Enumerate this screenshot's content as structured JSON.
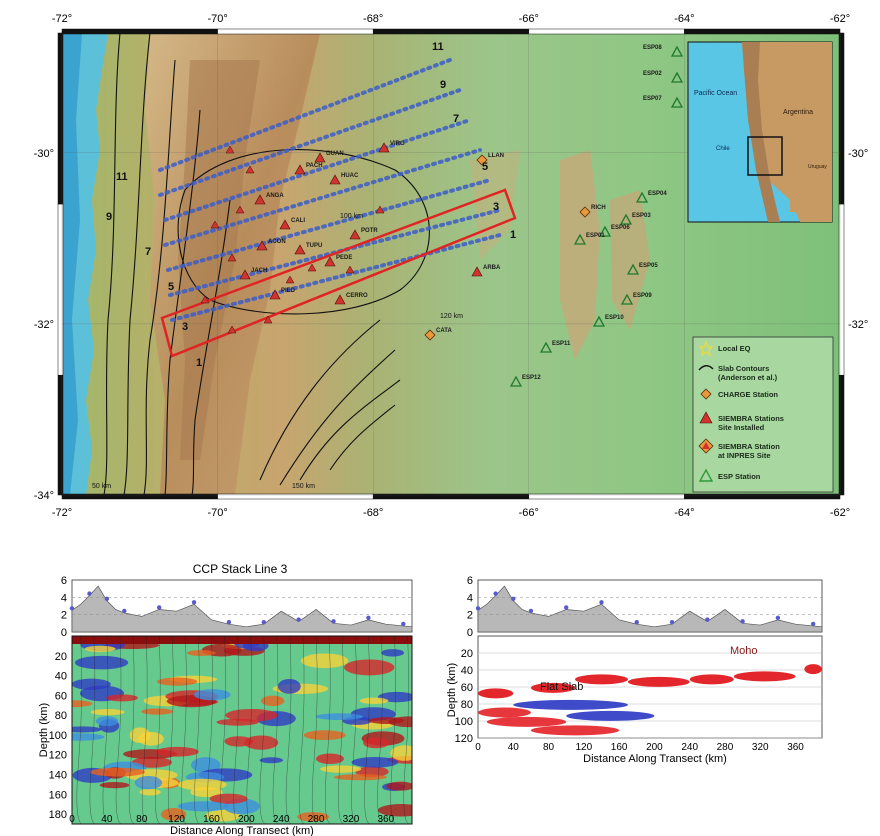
{
  "map": {
    "lon_labels": [
      "-72°",
      "-70°",
      "-68°",
      "-66°",
      "-64°",
      "-62°"
    ],
    "lat_labels_left": [
      "-30°",
      "-32°",
      "-34°"
    ],
    "lat_labels_right": [
      "-30°",
      "-32°"
    ],
    "lon_values": [
      -72,
      -70,
      -68,
      -66,
      -64,
      -62
    ],
    "lat_values": [
      -30,
      -32,
      -34
    ],
    "extent": {
      "lon": [
        -72,
        -62
      ],
      "lat": [
        -34,
        -28.6
      ]
    },
    "contour_labels": [
      "100 km",
      "120 km",
      "150 km",
      "50 km"
    ],
    "slab_numbers": [
      "11",
      "9",
      "7",
      "5",
      "3",
      "1",
      "11",
      "9",
      "7",
      "5",
      "3",
      "1"
    ],
    "station_labels": [
      "ESP08",
      "ESP02",
      "ESP07",
      "LLAN",
      "ESP04",
      "ESP03",
      "ESP06",
      "ESP05",
      "ESP09",
      "ESP10",
      "ESP11",
      "ESP12",
      "ESP01",
      "RICH",
      "ARBA",
      "CATA",
      "VIRG",
      "GUAN",
      "PACH",
      "HUAC",
      "ANGA",
      "CALI",
      "ACON",
      "TUPU",
      "PEDE",
      "POTR",
      "JACH",
      "PIED",
      "CERRO"
    ],
    "inset": {
      "labels": [
        "Pacific Ocean",
        "Argentina",
        "Chile",
        "Uruguay"
      ]
    },
    "legend": [
      {
        "symbol": "star",
        "label": "Local EQ",
        "color": "#e8d84a"
      },
      {
        "symbol": "line",
        "label": "Slab Contours (Anderson et al.)",
        "color": "#111111"
      },
      {
        "symbol": "diamond",
        "label": "CHARGE Station",
        "color": "#e89a3a"
      },
      {
        "symbol": "triangle",
        "label": "SIEMBRA Stations Site Installed",
        "color": "#d0342c"
      },
      {
        "symbol": "diamond-triangle",
        "label": "SIEMBRA Station at INPRES Site",
        "color": "#d0342c"
      },
      {
        "symbol": "triangle-open",
        "label": "ESP Station",
        "color": "#2e9a3a"
      }
    ]
  },
  "chart_data": [
    {
      "type": "heatmap",
      "title": "CCP Stack Line 3",
      "xlabel": "Distance Along Transect (km)",
      "ylabel": "Depth (km)",
      "xlim": [
        0,
        390
      ],
      "ylim": [
        190,
        0
      ],
      "x_ticks": [
        "0",
        "40",
        "80",
        "120",
        "160",
        "200",
        "240",
        "280",
        "320",
        "360"
      ],
      "y_ticks": [
        "20",
        "40",
        "60",
        "80",
        "100",
        "120",
        "140",
        "160",
        "180"
      ],
      "topo_ticks": [
        "6",
        "4",
        "2",
        "0"
      ],
      "topo_ylim": [
        0,
        6
      ],
      "topography": {
        "x": [
          0,
          10,
          20,
          30,
          40,
          50,
          60,
          80,
          100,
          120,
          140,
          160,
          180,
          200,
          220,
          240,
          260,
          280,
          300,
          320,
          340,
          360,
          380,
          390
        ],
        "elev": [
          2.5,
          3.2,
          4.2,
          5.3,
          3.6,
          2.6,
          2.2,
          1.8,
          2.6,
          2.4,
          3.2,
          1.4,
          0.9,
          0.6,
          0.9,
          2.4,
          1.2,
          2.6,
          1.0,
          0.8,
          1.4,
          0.9,
          0.7,
          0.6
        ]
      }
    },
    {
      "type": "area",
      "title": "",
      "xlabel": "Distance Along Transect (km)",
      "ylabel": "Depth (km)",
      "xlim": [
        0,
        390
      ],
      "ylim": [
        120,
        0
      ],
      "x_ticks": [
        "0",
        "40",
        "80",
        "120",
        "160",
        "200",
        "240",
        "280",
        "320",
        "360"
      ],
      "y_ticks": [
        "20",
        "40",
        "60",
        "80",
        "100",
        "120"
      ],
      "topo_ticks": [
        "6",
        "4",
        "2",
        "0"
      ],
      "topo_ylim": [
        0,
        6
      ],
      "annotations": [
        "Moho",
        "Flat Slab"
      ],
      "topography": {
        "x": [
          0,
          10,
          20,
          30,
          40,
          50,
          60,
          80,
          100,
          120,
          140,
          160,
          180,
          200,
          220,
          240,
          260,
          280,
          300,
          320,
          340,
          360,
          380,
          390
        ],
        "elev": [
          2.5,
          3.2,
          4.2,
          5.3,
          3.6,
          2.6,
          2.2,
          1.8,
          2.6,
          2.4,
          3.2,
          1.4,
          0.9,
          0.6,
          0.9,
          2.4,
          1.2,
          2.6,
          1.0,
          0.8,
          1.4,
          0.9,
          0.7,
          0.6
        ]
      },
      "moho": [
        {
          "x": [
            0,
            40
          ],
          "depth": [
            65,
            70
          ]
        },
        {
          "x": [
            60,
            110
          ],
          "depth": [
            60,
            62
          ]
        },
        {
          "x": [
            110,
            170
          ],
          "depth": [
            50,
            52
          ]
        },
        {
          "x": [
            170,
            240
          ],
          "depth": [
            53,
            55
          ]
        },
        {
          "x": [
            240,
            290
          ],
          "depth": [
            50,
            52
          ]
        },
        {
          "x": [
            290,
            360
          ],
          "depth": [
            47,
            48
          ]
        },
        {
          "x": [
            370,
            390
          ],
          "depth": [
            38,
            40
          ]
        }
      ],
      "flat_slab": [
        {
          "x": [
            0,
            60
          ],
          "depth": [
            88,
            92
          ]
        },
        {
          "x": [
            40,
            170
          ],
          "depth": [
            80,
            82
          ]
        },
        {
          "x": [
            10,
            100
          ],
          "depth": [
            100,
            102
          ]
        },
        {
          "x": [
            100,
            200
          ],
          "depth": [
            93,
            95
          ]
        },
        {
          "x": [
            60,
            160
          ],
          "depth": [
            110,
            112
          ]
        }
      ]
    }
  ]
}
